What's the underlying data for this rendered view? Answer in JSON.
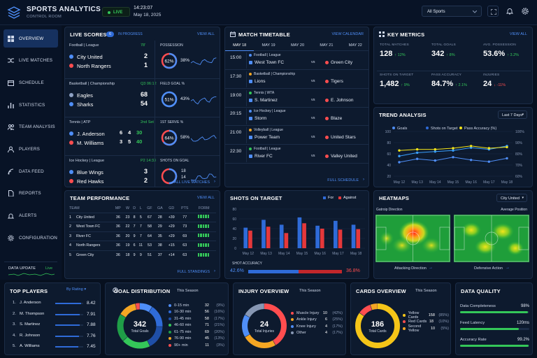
{
  "header": {
    "title": "SPORTS ANALYTICS",
    "subtitle": "CONTROL ROOM",
    "live": "LIVE",
    "time": "14:23:07",
    "date": "May 18, 2025",
    "filter": "All Sports"
  },
  "sidebar": {
    "items": [
      {
        "label": "OVERVIEW",
        "icon": "grid-icon"
      },
      {
        "label": "LIVE MATCHES",
        "icon": "shuffle-icon"
      },
      {
        "label": "SCHEDULE",
        "icon": "calendar-icon"
      },
      {
        "label": "STATISTICS",
        "icon": "bar-chart-icon"
      },
      {
        "label": "TEAM ANALYSIS",
        "icon": "team-icon"
      },
      {
        "label": "PLAYERS",
        "icon": "user-icon"
      },
      {
        "label": "DATA FEED",
        "icon": "feed-icon"
      },
      {
        "label": "REPORTS",
        "icon": "document-icon"
      },
      {
        "label": "ALERTS",
        "icon": "bell-icon"
      },
      {
        "label": "CONFIGURATION",
        "icon": "gear-icon"
      }
    ],
    "update_label": "DATA UPDATE",
    "update_status": "Live"
  },
  "live_scores": {
    "title": "LIVE SCORES",
    "count": "6",
    "status": "IN PROGRESS",
    "view_all": "VIEW ALL",
    "footer": "ALL LIVE MATCHES",
    "matches": [
      {
        "league": "Football | League",
        "clock": "78'",
        "team1": "City United",
        "team2": "North Rangers",
        "score1": "2",
        "score2": "1",
        "metric": "POSSESSION",
        "pct": 62,
        "pct_label": "62%",
        "other": "38%",
        "c1": "#4f8ef7",
        "c2": "#ff4d4f"
      },
      {
        "league": "Basketball | Championship",
        "clock": "Q3 06:12",
        "team1": "Eagles",
        "team2": "Sharks",
        "score1": "68",
        "score2": "54",
        "metric": "FIELD GOAL %",
        "pct": 51,
        "pct_label": "51%",
        "other": "43%",
        "c1": "#8fa2c4",
        "c2": "#4f8ef7"
      },
      {
        "league": "Tennis | ATP",
        "clock": "2nd Set",
        "team1": "J. Anderson",
        "team2": "M. Williams",
        "set1": [
          "6",
          "4",
          "30"
        ],
        "set2": [
          "3",
          "5",
          "40"
        ],
        "metric": "1ST SERVE %",
        "pct": 64,
        "pct_label": "64%",
        "other": "58%",
        "c1": "#4f8ef7",
        "c2": "#ff4d4f"
      },
      {
        "league": "Ice Hockey | League",
        "clock": "P2 14:33",
        "team1": "Blue Wings",
        "team2": "Red Hawks",
        "score1": "3",
        "score2": "2",
        "metric": "SHOTS ON GOAL",
        "pct": 50,
        "pct_label": "",
        "other": "",
        "shots1": "18",
        "shots2": "14",
        "c1": "#4f8ef7",
        "c2": "#ff4d4f"
      }
    ]
  },
  "timetable": {
    "title": "MATCH TIMETABLE",
    "view_all": "VIEW CALENDAR",
    "footer": "FULL SCHEDULE",
    "days": [
      "MAY 18",
      "MAY 19",
      "MAY 20",
      "MAY 21",
      "MAY 22"
    ],
    "matches": [
      {
        "time": "15:00",
        "league": "Football | League",
        "home": "West Town FC",
        "away": "Green City",
        "vs": "vs"
      },
      {
        "time": "17:30",
        "league": "Basketball | Championship",
        "home": "Lions",
        "away": "Tigers",
        "vs": "vs"
      },
      {
        "time": "19:00",
        "league": "Tennis | WTA",
        "home": "S. Martinez",
        "away": "E. Johnson",
        "vs": "vs"
      },
      {
        "time": "20:15",
        "league": "Ice Hockey | League",
        "home": "Storm",
        "away": "Blaze",
        "vs": "vs"
      },
      {
        "time": "21:00",
        "league": "Volleyball | League",
        "home": "Power Team",
        "away": "United Stars",
        "vs": "vs"
      },
      {
        "time": "22:30",
        "league": "Football | League",
        "home": "River FC",
        "away": "Valley United",
        "vs": "vs"
      }
    ]
  },
  "key_metrics": {
    "title": "KEY METRICS",
    "view_all": "VIEW ALL",
    "items": [
      {
        "label": "TOTAL MATCHES",
        "value": "128",
        "delta": "↑ 12%",
        "dir": "up"
      },
      {
        "label": "TOTAL GOALS",
        "value": "342",
        "delta": "↑ 8%",
        "dir": "up"
      },
      {
        "label": "AVG. POSSESSION",
        "value": "53.6%",
        "delta": "↑ 3.2%",
        "dir": "up"
      },
      {
        "label": "SHOTS ON TARGET",
        "value": "1,482",
        "delta": "↑ 9%",
        "dir": "up"
      },
      {
        "label": "PASS ACCURACY",
        "value": "84.7%",
        "delta": "↑ 2.1%",
        "dir": "up"
      },
      {
        "label": "INJURIES",
        "value": "24",
        "delta": "↓ -11%",
        "dir": "down"
      }
    ]
  },
  "trend": {
    "title": "TREND ANALYSIS",
    "range": "Last 7 Days"
  },
  "team_perf": {
    "title": "TEAM PERFORMANCE",
    "view_all": "VIEW ALL",
    "footer": "FULL STANDINGS",
    "headers": [
      "TEAM",
      "MP",
      "W",
      "D",
      "L",
      "GF",
      "GA",
      "GD",
      "PTS",
      "FORM"
    ],
    "rows": [
      {
        "pos": "1",
        "team": "City United",
        "mp": "36",
        "w": "23",
        "d": "8",
        "l": "5",
        "gf": "67",
        "ga": "28",
        "gd": "+39",
        "pts": "77"
      },
      {
        "pos": "2",
        "team": "West Town FC",
        "mp": "36",
        "w": "22",
        "d": "7",
        "l": "7",
        "gf": "58",
        "ga": "29",
        "gd": "+29",
        "pts": "73"
      },
      {
        "pos": "3",
        "team": "River FC",
        "mp": "36",
        "w": "20",
        "d": "9",
        "l": "7",
        "gf": "64",
        "ga": "35",
        "gd": "+29",
        "pts": "69"
      },
      {
        "pos": "4",
        "team": "North Rangers",
        "mp": "36",
        "w": "19",
        "d": "6",
        "l": "11",
        "gf": "53",
        "ga": "38",
        "gd": "+15",
        "pts": "63"
      },
      {
        "pos": "5",
        "team": "Green City",
        "mp": "36",
        "w": "18",
        "d": "9",
        "l": "9",
        "gf": "51",
        "ga": "37",
        "gd": "+14",
        "pts": "63"
      }
    ]
  },
  "shots": {
    "title": "SHOTS ON TARGET",
    "legend_for": "For",
    "legend_against": "Against",
    "accuracy_label": "SHOT ACCURACY",
    "acc_left": "42.6%",
    "acc_right": "36.8%",
    "acc_left_val": 42.6,
    "acc_right_val": 36.8
  },
  "heatmaps": {
    "title": "HEATMAPS",
    "filter": "City United",
    "left_label": "Gatroip Direction",
    "right_label": "Average Position",
    "left_footer": "Attacking Direction",
    "right_footer": "Defensive Action"
  },
  "top_players": {
    "title": "TOP PLAYERS",
    "sort": "By Rating",
    "rows": [
      {
        "rank": "1.",
        "name": "J. Anderson",
        "rating": "8.42",
        "r": 8.42
      },
      {
        "rank": "2.",
        "name": "M. Thompson",
        "rating": "7.91",
        "r": 7.91
      },
      {
        "rank": "3.",
        "name": "S. Martinez",
        "rating": "7.88",
        "r": 7.88
      },
      {
        "rank": "4.",
        "name": "R. Johnson",
        "rating": "7.76",
        "r": 7.76
      },
      {
        "rank": "5.",
        "name": "A. Williams",
        "rating": "7.45",
        "r": 7.45
      }
    ]
  },
  "goal_dist": {
    "title": "GOAL DISTRIBUTION",
    "period": "This Season",
    "center_value": "342",
    "center_label": "Total Goals",
    "items": [
      {
        "label": "0-15 min",
        "value": "32",
        "pct": "(9%)",
        "color": "#4f8ef7"
      },
      {
        "label": "16-30 min",
        "value": "56",
        "pct": "(16%)",
        "color": "#2f6bd8"
      },
      {
        "label": "31-45 min",
        "value": "58",
        "pct": "(17%)",
        "color": "#1f4fa8"
      },
      {
        "label": "46-60 min",
        "value": "71",
        "pct": "(21%)",
        "color": "#34c759"
      },
      {
        "label": "61-75 min",
        "value": "69",
        "pct": "(20%)",
        "color": "#1f9e47"
      },
      {
        "label": "76-90 min",
        "value": "45",
        "pct": "(13%)",
        "color": "#f5a623"
      },
      {
        "label": "90+ min",
        "value": "11",
        "pct": "(3%)",
        "color": "#ff4d4f"
      }
    ]
  },
  "injury": {
    "title": "INJURY OVERVIEW",
    "period": "This Season",
    "center_value": "24",
    "center_label": "Total Injuries",
    "items": [
      {
        "label": "Muscle Injury",
        "value": "10",
        "pct": "(42%)",
        "color": "#ff4d4f"
      },
      {
        "label": "Ankle Injury",
        "value": "6",
        "pct": "(25%)",
        "color": "#f5a623"
      },
      {
        "label": "Knee Injury",
        "value": "4",
        "pct": "(17%)",
        "color": "#4f8ef7"
      },
      {
        "label": "Other",
        "value": "4",
        "pct": "(17%)",
        "color": "#8797b3"
      }
    ]
  },
  "cards": {
    "title": "CARDS OVERVIEW",
    "period": "This Season",
    "center_value": "186",
    "center_label": "Total Cards",
    "items": [
      {
        "label": "Yellow Cards",
        "value": "158",
        "pct": "(85%)",
        "color": "#f5c518"
      },
      {
        "label": "Red Cards",
        "value": "18",
        "pct": "(10%)",
        "color": "#ff4d4f"
      },
      {
        "label": "Second Yellow",
        "value": "10",
        "pct": "(5%)",
        "color": "#f5a623"
      }
    ]
  },
  "data_quality": {
    "title": "DATA QUALITY",
    "items": [
      {
        "label": "Data Completeness",
        "value": "98%",
        "v": 98
      },
      {
        "label": "Feed Latency",
        "value": "120ms",
        "v": 85
      },
      {
        "label": "Accuracy Rate",
        "value": "99.2%",
        "v": 99.2
      }
    ]
  },
  "chart_data": [
    {
      "type": "line",
      "title": "TREND ANALYSIS",
      "x": [
        "May 12",
        "May 13",
        "May 14",
        "May 15",
        "May 16",
        "May 17",
        "May 18"
      ],
      "series": [
        {
          "name": "Goals",
          "values": [
            45,
            51,
            48,
            54,
            49,
            46,
            52
          ],
          "axis": "left"
        },
        {
          "name": "Shots on Target",
          "values": [
            56,
            62,
            64,
            66,
            71,
            68,
            74
          ],
          "axis": "left"
        },
        {
          "name": "Pass Accuracy (%)",
          "values": [
            83,
            84,
            84,
            85,
            87,
            85,
            86
          ],
          "axis": "right"
        }
      ],
      "ylim_left": [
        20,
        100
      ],
      "yticks_left": [
        "20",
        "40",
        "60",
        "80",
        "100"
      ],
      "ylim_right": [
        60,
        100
      ],
      "yticks_right": [
        "60%",
        "70%",
        "80%",
        "90%",
        "100%"
      ],
      "legend": "top"
    },
    {
      "type": "bar",
      "title": "SHOTS ON TARGET",
      "categories": [
        "May 12",
        "May 13",
        "May 14",
        "May 15",
        "May 16",
        "May 17",
        "May 18"
      ],
      "series": [
        {
          "name": "For",
          "values": [
            42,
            58,
            48,
            63,
            46,
            56,
            48
          ]
        },
        {
          "name": "Against",
          "values": [
            36,
            44,
            31,
            51,
            40,
            38,
            39
          ]
        }
      ],
      "ylim": [
        0,
        80
      ],
      "yticks": [
        "0",
        "20",
        "40",
        "60",
        "80"
      ]
    },
    {
      "type": "bar",
      "title": "TOP PLAYERS",
      "categories": [
        "J. Anderson",
        "M. Thompson",
        "S. Martinez",
        "R. Johnson",
        "A. Williams"
      ],
      "values": [
        8.42,
        7.91,
        7.88,
        7.76,
        7.45
      ],
      "ylim": [
        0,
        10
      ]
    },
    {
      "type": "pie",
      "title": "GOAL DISTRIBUTION",
      "categories": [
        "0-15 min",
        "16-30 min",
        "31-45 min",
        "46-60 min",
        "61-75 min",
        "76-90 min",
        "90+ min"
      ],
      "values": [
        32,
        56,
        58,
        71,
        69,
        45,
        11
      ]
    },
    {
      "type": "pie",
      "title": "INJURY OVERVIEW",
      "categories": [
        "Muscle Injury",
        "Ankle Injury",
        "Knee Injury",
        "Other"
      ],
      "values": [
        10,
        6,
        4,
        4
      ]
    },
    {
      "type": "pie",
      "title": "CARDS OVERVIEW",
      "categories": [
        "Yellow Cards",
        "Red Cards",
        "Second Yellow"
      ],
      "values": [
        158,
        18,
        10
      ]
    }
  ]
}
